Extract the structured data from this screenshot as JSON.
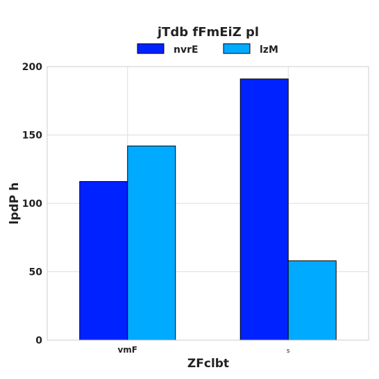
{
  "chart_data": {
    "type": "bar",
    "title": "jTdb fFmEiZ pl",
    "xlabel": "ZFclbt",
    "ylabel": "lpdP h",
    "categories": [
      "vmF",
      "s"
    ],
    "series": [
      {
        "name": "nvrE",
        "values": [
          116,
          191
        ],
        "color": "#0022ff"
      },
      {
        "name": "lzM",
        "values": [
          142,
          58
        ],
        "color": "#00aaff"
      }
    ],
    "ylim": [
      0,
      200
    ],
    "yticks": [
      0,
      50,
      100,
      150,
      200
    ],
    "grid": true,
    "legend": "top-center"
  }
}
